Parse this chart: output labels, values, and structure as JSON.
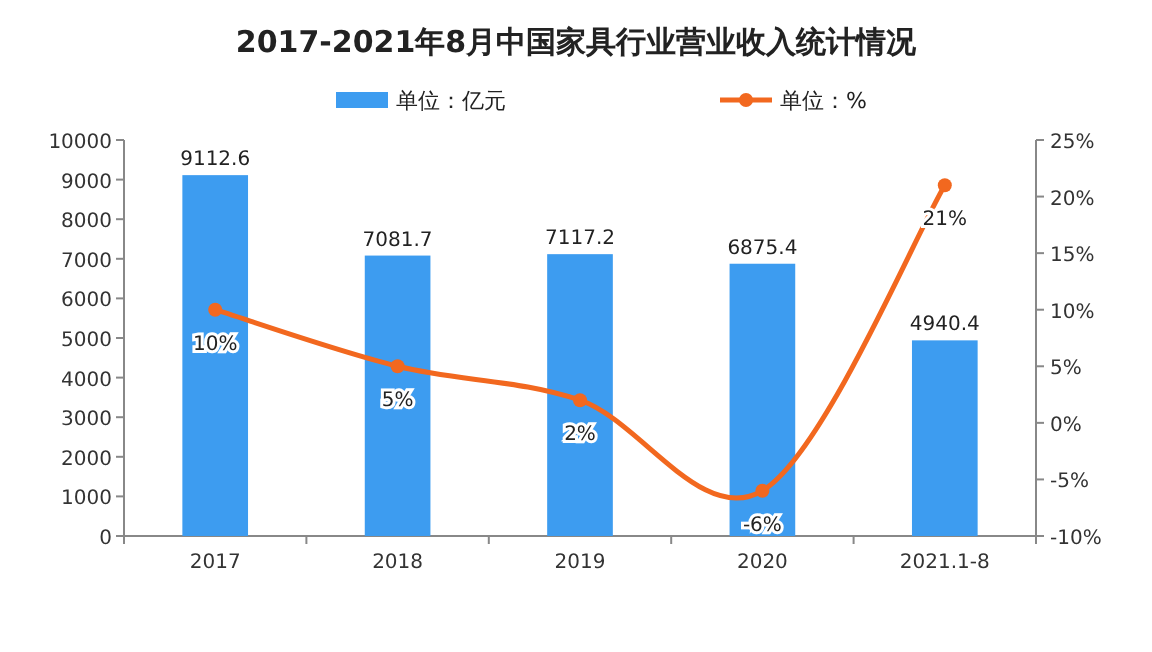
{
  "chart_data": {
    "type": "bar",
    "title": "2017-2021年8月中国家具行业营业收入统计情况",
    "categories": [
      "2017",
      "2018",
      "2019",
      "2020",
      "2021.1-8"
    ],
    "series": [
      {
        "name": "单位：亿元",
        "color": "#3d9cf0",
        "values": [
          9112.6,
          7081.7,
          7117.2,
          6875.4,
          4940.4
        ],
        "value_labels": [
          "9112.6",
          "7081.7",
          "7117.2",
          "6875.4",
          "4940.4"
        ]
      },
      {
        "name": "单位：%",
        "type": "line",
        "axis": "y2",
        "color": "#f2681f",
        "marker": "circle",
        "values": [
          10,
          5,
          2,
          -6,
          21
        ],
        "value_labels": [
          "10%",
          "5%",
          "2%",
          "-6%",
          "21%"
        ]
      }
    ],
    "ylim": [
      0,
      10000
    ],
    "yticks": [
      0,
      1000,
      2000,
      3000,
      4000,
      5000,
      6000,
      7000,
      8000,
      9000,
      10000
    ],
    "y2lim": [
      -10,
      25
    ],
    "y2ticks": [
      {
        "value": -10,
        "label": "-10%"
      },
      {
        "value": -5,
        "label": "-5%"
      },
      {
        "value": 0,
        "label": "0%"
      },
      {
        "value": 5,
        "label": "5%"
      },
      {
        "value": 10,
        "label": "10%"
      },
      {
        "value": 15,
        "label": "15%"
      },
      {
        "value": 20,
        "label": "20%"
      },
      {
        "value": 25,
        "label": "25%"
      }
    ],
    "legend": "top",
    "grid": false
  }
}
